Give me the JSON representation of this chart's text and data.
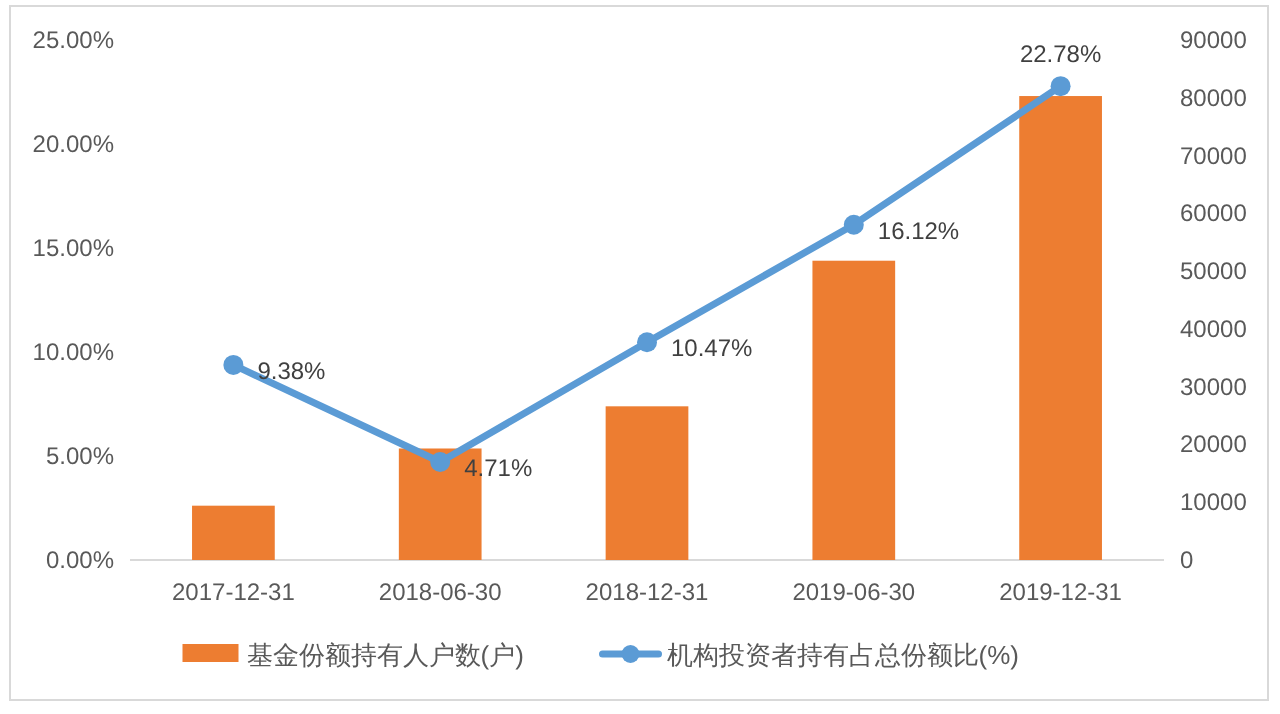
{
  "chart_data": {
    "type": "bar",
    "categories": [
      "2017-12-31",
      "2018-06-30",
      "2018-12-31",
      "2019-06-30",
      "2019-12-31"
    ],
    "series": [
      {
        "name": "基金份额持有人户数(户)",
        "axis": "y2",
        "color": "#ed7d31",
        "values": [
          9400,
          19300,
          26600,
          51800,
          80300
        ]
      },
      {
        "name": "机构投资者持有占总份额比(%)",
        "type": "line",
        "axis": "y",
        "color": "#5b9bd5",
        "marker": "circle",
        "values": [
          9.38,
          4.71,
          10.47,
          16.12,
          22.78
        ],
        "value_labels": [
          "9.38%",
          "4.71%",
          "10.47%",
          "16.12%",
          "22.78%"
        ]
      }
    ],
    "ylim": [
      0,
      25
    ],
    "yticks": [
      {
        "value": 0,
        "label": "0.00%"
      },
      {
        "value": 5,
        "label": "5.00%"
      },
      {
        "value": 10,
        "label": "10.00%"
      },
      {
        "value": 15,
        "label": "15.00%"
      },
      {
        "value": 20,
        "label": "20.00%"
      },
      {
        "value": 25,
        "label": "25.00%"
      }
    ],
    "y2lim": [
      0,
      90000
    ],
    "y2ticks": [
      0,
      10000,
      20000,
      30000,
      40000,
      50000,
      60000,
      70000,
      80000,
      90000
    ],
    "legend": "bottom"
  }
}
